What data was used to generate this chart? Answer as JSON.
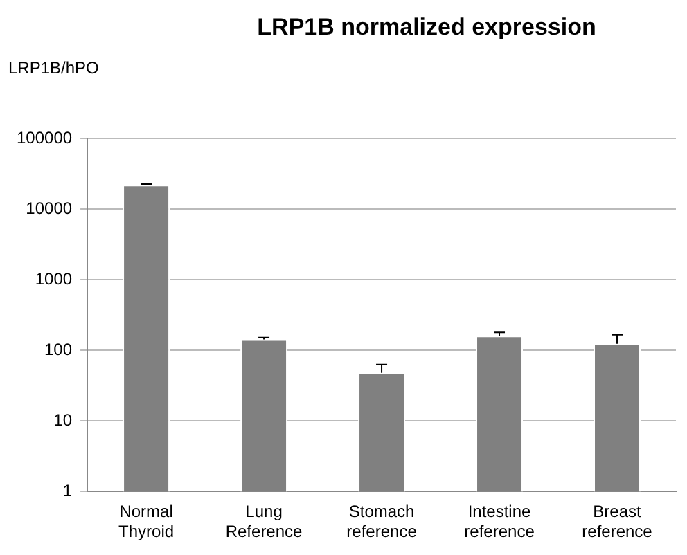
{
  "chart_data": {
    "type": "bar",
    "title": "LRP1B normalized expression",
    "ylabel": "LRP1B/hPO",
    "categories": [
      "Normal Thyroid",
      "Lung Reference",
      "Stomach reference",
      "Intestine reference",
      "Breast reference"
    ],
    "values": [
      22000,
      143,
      48,
      161,
      124
    ],
    "color": "#808080",
    "errors": [
      [
        22000,
        22600
      ],
      [
        143,
        152
      ],
      [
        48,
        63
      ],
      [
        161,
        180
      ],
      [
        124,
        166
      ]
    ],
    "log": "y",
    "ylim": [
      1,
      100000
    ],
    "yticks": [
      1,
      10,
      100,
      1000,
      10000,
      100000
    ],
    "grid": "y",
    "legend": false
  }
}
